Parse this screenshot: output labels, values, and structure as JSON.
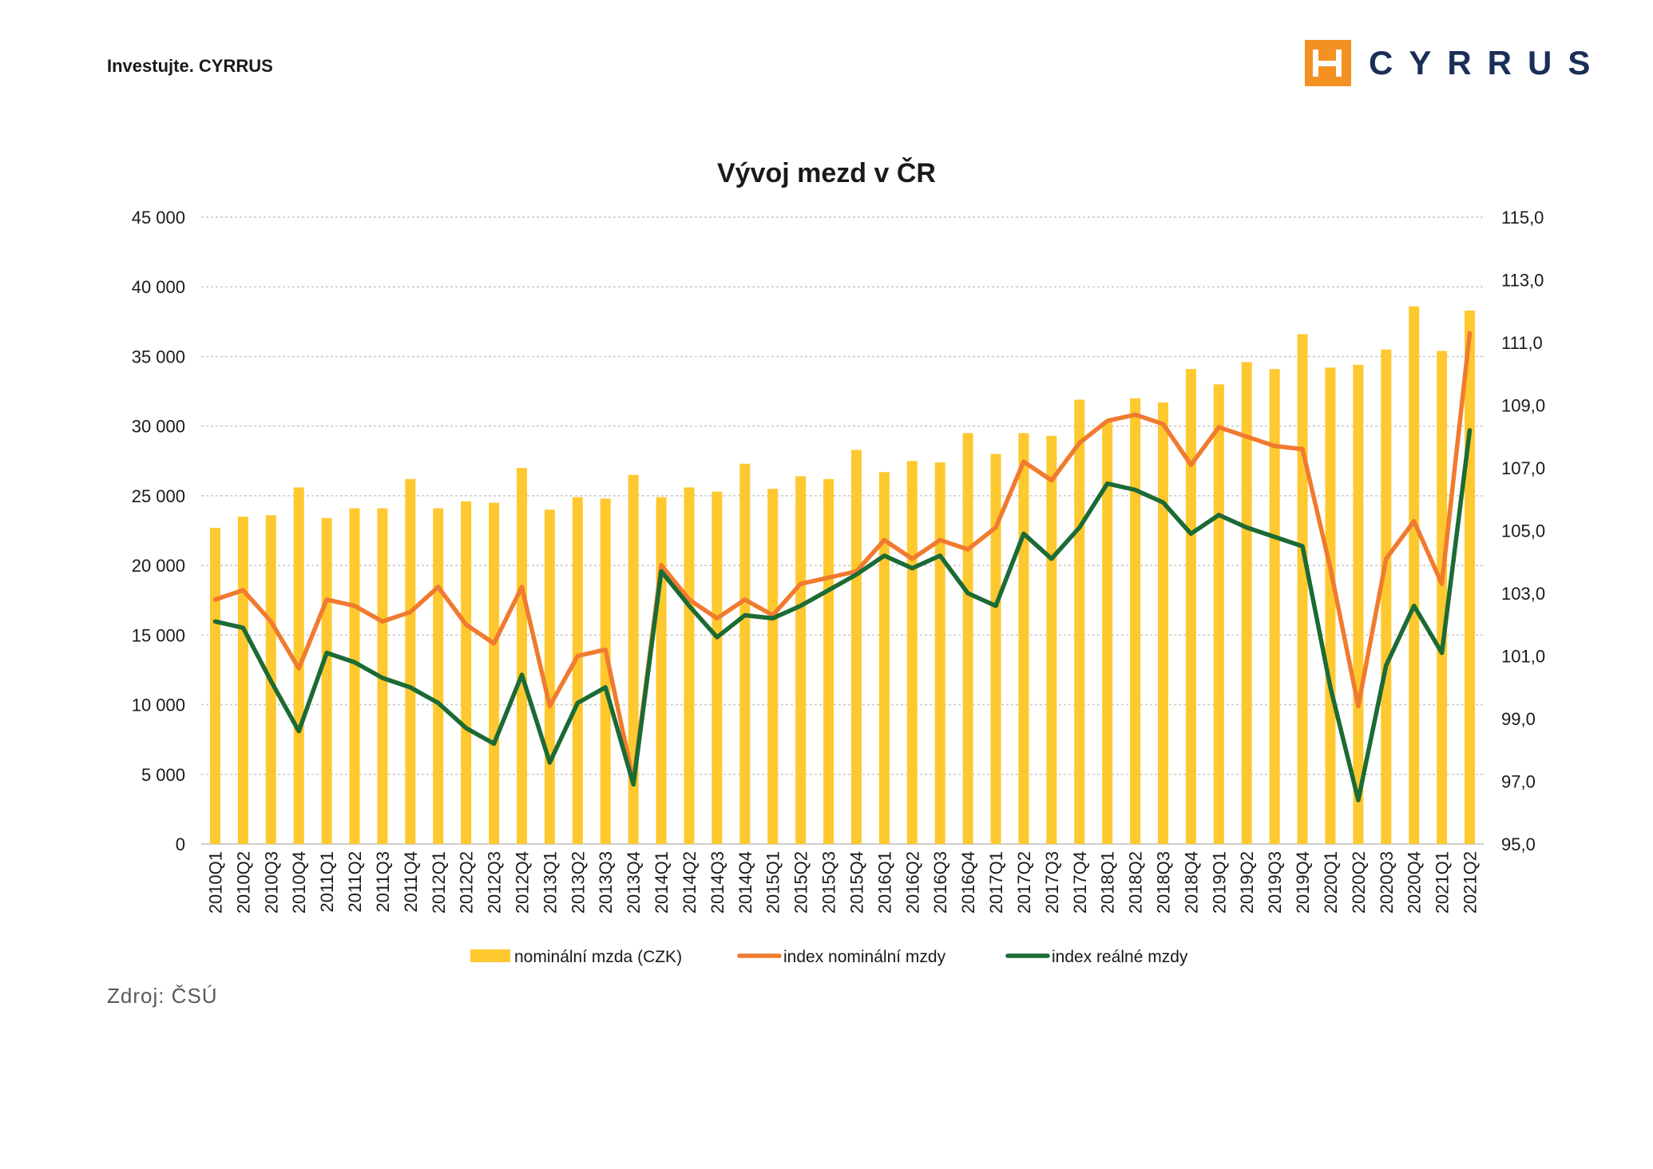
{
  "header": {
    "tagline": "Investujte. CYRRUS",
    "logo_text": "CYRRUS"
  },
  "footer": {
    "source": "Zdroj: ČSÚ"
  },
  "colors": {
    "bar": "#fec82f",
    "nominal_line": "#f07b2f",
    "real_line": "#1b6b34",
    "grid": "#c8c8c8",
    "logo_orange": "#f39222",
    "logo_text": "#1a2e57"
  },
  "chart_data": {
    "type": "bar+line",
    "title": "Vývoj mezd v ČR",
    "categories": [
      "2010Q1",
      "2010Q2",
      "2010Q3",
      "2010Q4",
      "2011Q1",
      "2011Q2",
      "2011Q3",
      "2011Q4",
      "2012Q1",
      "2012Q2",
      "2012Q3",
      "2012Q4",
      "2013Q1",
      "2013Q2",
      "2013Q3",
      "2013Q4",
      "2014Q1",
      "2014Q2",
      "2014Q3",
      "2014Q4",
      "2015Q1",
      "2015Q2",
      "2015Q3",
      "2015Q4",
      "2016Q1",
      "2016Q2",
      "2016Q3",
      "2016Q4",
      "2017Q1",
      "2017Q2",
      "2017Q3",
      "2017Q4",
      "2018Q1",
      "2018Q2",
      "2018Q3",
      "2018Q4",
      "2019Q1",
      "2019Q2",
      "2019Q3",
      "2019Q4",
      "2020Q1",
      "2020Q2",
      "2020Q3",
      "2020Q4",
      "2021Q1",
      "2021Q2"
    ],
    "left_axis": {
      "ylim": [
        0,
        45000
      ],
      "ticks": [
        "0",
        "5 000",
        "10 000",
        "15 000",
        "20 000",
        "25 000",
        "30 000",
        "35 000",
        "40 000",
        "45 000"
      ]
    },
    "right_axis": {
      "ylim": [
        95,
        115
      ],
      "ticks": [
        "95,0",
        "97,0",
        "99,0",
        "101,0",
        "103,0",
        "105,0",
        "107,0",
        "109,0",
        "111,0",
        "113,0",
        "115,0"
      ]
    },
    "grid": true,
    "legend_position": "bottom",
    "series": [
      {
        "name": "nominální mzda (CZK)",
        "type": "bar",
        "axis": "left",
        "values": [
          22700,
          23500,
          23600,
          25600,
          23400,
          24100,
          24100,
          26200,
          24100,
          24600,
          24500,
          27000,
          24000,
          24900,
          24800,
          26500,
          24900,
          25600,
          25300,
          27300,
          25500,
          26400,
          26200,
          28300,
          26700,
          27500,
          27400,
          29500,
          28000,
          29500,
          29300,
          31900,
          30300,
          32000,
          31700,
          34100,
          33000,
          34600,
          34100,
          36600,
          34200,
          34400,
          35500,
          38600,
          35400,
          38300
        ]
      },
      {
        "name": "index nominální mzdy",
        "type": "line",
        "axis": "right",
        "values": [
          102.8,
          103.1,
          102.1,
          100.6,
          102.8,
          102.6,
          102.1,
          102.4,
          103.2,
          102.0,
          101.4,
          103.2,
          99.4,
          101.0,
          101.2,
          97.0,
          103.9,
          102.8,
          102.2,
          102.8,
          102.3,
          103.3,
          103.5,
          103.7,
          104.7,
          104.1,
          104.7,
          104.4,
          105.1,
          107.2,
          106.6,
          107.8,
          108.5,
          108.7,
          108.4,
          107.1,
          108.3,
          108.0,
          107.7,
          107.6,
          103.8,
          99.4,
          104.1,
          105.3,
          103.3,
          111.3
        ]
      },
      {
        "name": "index reálné mzdy",
        "type": "line",
        "axis": "right",
        "values": [
          102.1,
          101.9,
          100.2,
          98.6,
          101.1,
          100.8,
          100.3,
          100.0,
          99.5,
          98.7,
          98.2,
          100.4,
          97.6,
          99.5,
          100.0,
          96.9,
          103.7,
          102.6,
          101.6,
          102.3,
          102.2,
          102.6,
          103.1,
          103.6,
          104.2,
          103.8,
          104.2,
          103.0,
          102.6,
          104.9,
          104.1,
          105.1,
          106.5,
          106.3,
          105.9,
          104.9,
          105.5,
          105.1,
          104.8,
          104.5,
          100.0,
          96.4,
          100.7,
          102.6,
          101.1,
          108.2
        ]
      }
    ]
  }
}
